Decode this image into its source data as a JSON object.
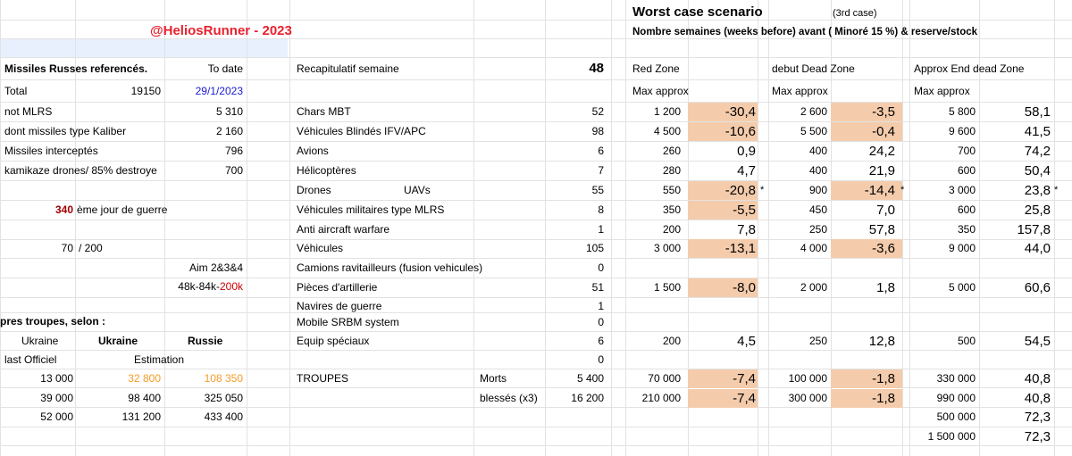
{
  "header": {
    "author": "@HeliosRunner - 2023",
    "title": "Worst case scenario",
    "case": "(3rd case)",
    "subtitle": "Nombre semaines (weeks before) avant ( Minoré 15 %) & reserve/stock"
  },
  "missiles": {
    "heading": "Missiles Russes referencés.",
    "to_date_label": "To date",
    "total_label": "Total",
    "total_value": "19150",
    "total_date": "29/1/2023",
    "not_mlrs_label": "not MLRS",
    "not_mlrs_value": "5 310",
    "kaliber_label": "dont missiles type Kaliber",
    "kaliber_value": "2 160",
    "intercepted_label": "Missiles interceptés",
    "intercepted_value": "796",
    "drones_label": "kamikaze drones/ 85% destroye",
    "drones_value": "700"
  },
  "war": {
    "day_number": "340",
    "day_label": "ème jour de guerre",
    "ratio": "70",
    "ratio_sep": "/ 200",
    "aim_label": "Aim 2&3&4",
    "aim_values_a": "48k-84k-",
    "aim_values_b": "200k"
  },
  "troops": {
    "heading": "pres troupes, selon :",
    "col_ukraine": "Ukraine",
    "col_ukraine_est": "Ukraine",
    "col_russie": "Russie",
    "last_officiel": "last Officiel",
    "estimation": "Estimation",
    "rows": [
      {
        "official": "13 000",
        "estimation": "32 800",
        "russie": "108 350"
      },
      {
        "official": "39 000",
        "estimation": "98 400",
        "russie": "325 050"
      },
      {
        "official": "52 000",
        "estimation": "131 200",
        "russie": "433 400"
      }
    ]
  },
  "recap": {
    "label": "Recapitulatif semaine",
    "week": "48",
    "col_red": "Red Zone",
    "col_dead_start": "debut Dead Zone",
    "col_dead_end": "Approx End dead Zone",
    "max_approx": "Max approx",
    "rows": [
      {
        "label": "Chars MBT",
        "sub": "",
        "week": "52",
        "red_max": "1 200",
        "red_val": "-30,4",
        "red_hl": true,
        "ds_max": "2 600",
        "ds_val": "-3,5",
        "ds_hl": true,
        "de_max": "5 800",
        "de_val": "58,1",
        "star": false
      },
      {
        "label": "Véhicules Blindés IFV/APC",
        "sub": "",
        "week": "98",
        "red_max": "4 500",
        "red_val": "-10,6",
        "red_hl": true,
        "ds_max": "5 500",
        "ds_val": "-0,4",
        "ds_hl": true,
        "de_max": "9 600",
        "de_val": "41,5",
        "star": false
      },
      {
        "label": "Avions",
        "sub": "",
        "week": "6",
        "red_max": "260",
        "red_val": "0,9",
        "red_hl": false,
        "ds_max": "400",
        "ds_val": "24,2",
        "ds_hl": false,
        "de_max": "700",
        "de_val": "74,2",
        "star": false
      },
      {
        "label": "Hélicoptères",
        "sub": "",
        "week": "7",
        "red_max": "280",
        "red_val": "4,7",
        "red_hl": false,
        "ds_max": "400",
        "ds_val": "21,9",
        "ds_hl": false,
        "de_max": "600",
        "de_val": "50,4",
        "star": false
      },
      {
        "label": "Drones",
        "sub": "UAVs",
        "week": "55",
        "red_max": "550",
        "red_val": "-20,8",
        "red_hl": true,
        "ds_max": "900",
        "ds_val": "-14,4",
        "ds_hl": true,
        "de_max": "3 000",
        "de_val": "23,8",
        "star": true
      },
      {
        "label": "Véhicules militaires type MLRS",
        "sub": "",
        "week": "8",
        "red_max": "350",
        "red_val": "-5,5",
        "red_hl": true,
        "ds_max": "450",
        "ds_val": "7,0",
        "ds_hl": false,
        "de_max": "600",
        "de_val": "25,8",
        "star": false
      },
      {
        "label": "Anti aircraft warfare",
        "sub": "",
        "week": "1",
        "red_max": "200",
        "red_val": "7,8",
        "red_hl": false,
        "ds_max": "250",
        "ds_val": "57,8",
        "ds_hl": false,
        "de_max": "350",
        "de_val": "157,8",
        "star": false
      },
      {
        "label": "Véhicules",
        "sub": "",
        "week": "105",
        "red_max": "3 000",
        "red_val": "-13,1",
        "red_hl": true,
        "ds_max": "4 000",
        "ds_val": "-3,6",
        "ds_hl": true,
        "de_max": "9 000",
        "de_val": "44,0",
        "star": false
      },
      {
        "label": "Camions ravitailleurs (fusion vehicules)",
        "sub": "",
        "week": "0",
        "red_max": "",
        "red_val": "",
        "red_hl": false,
        "ds_max": "",
        "ds_val": "",
        "ds_hl": false,
        "de_max": "",
        "de_val": "",
        "star": false
      },
      {
        "label": "Pièces d'artillerie",
        "sub": "",
        "week": "51",
        "red_max": "1 500",
        "red_val": "-8,0",
        "red_hl": true,
        "ds_max": "2 000",
        "ds_val": "1,8",
        "ds_hl": false,
        "de_max": "5 000",
        "de_val": "60,6",
        "star": false
      },
      {
        "label": "Navires de guerre",
        "sub": "",
        "week": "1",
        "red_max": "",
        "red_val": "",
        "red_hl": false,
        "ds_max": "",
        "ds_val": "",
        "ds_hl": false,
        "de_max": "",
        "de_val": "",
        "star": false
      },
      {
        "label": "Mobile SRBM system",
        "sub": "",
        "week": "0",
        "red_max": "",
        "red_val": "",
        "red_hl": false,
        "ds_max": "",
        "ds_val": "",
        "ds_hl": false,
        "de_max": "",
        "de_val": "",
        "star": false
      },
      {
        "label": "Equip spéciaux",
        "sub": "",
        "week": "6",
        "red_max": "200",
        "red_val": "4,5",
        "red_hl": false,
        "ds_max": "250",
        "ds_val": "12,8",
        "ds_hl": false,
        "de_max": "500",
        "de_val": "54,5",
        "star": false
      },
      {
        "label": "",
        "sub": "",
        "week": "0",
        "red_max": "",
        "red_val": "",
        "red_hl": false,
        "ds_max": "",
        "ds_val": "",
        "ds_hl": false,
        "de_max": "",
        "de_val": "",
        "star": false
      },
      {
        "label": "TROUPES",
        "sub": "Morts",
        "week": "5 400",
        "red_max": "70 000",
        "red_val": "-7,4",
        "red_hl": true,
        "ds_max": "100 000",
        "ds_val": "-1,8",
        "ds_hl": true,
        "de_max": "330 000",
        "de_val": "40,8",
        "star": false
      },
      {
        "label": "",
        "sub": "blessés (x3)",
        "week": "16 200",
        "red_max": "210 000",
        "red_val": "-7,4",
        "red_hl": true,
        "ds_max": "300 000",
        "ds_val": "-1,8",
        "ds_hl": true,
        "de_max": "990 000",
        "de_val": "40,8",
        "star": false
      },
      {
        "label": "",
        "sub": "",
        "week": "",
        "red_max": "",
        "red_val": "",
        "red_hl": false,
        "ds_max": "",
        "ds_val": "",
        "ds_hl": false,
        "de_max": "500 000",
        "de_val": "72,3",
        "star": false
      },
      {
        "label": "",
        "sub": "",
        "week": "",
        "red_max": "",
        "red_val": "",
        "red_hl": false,
        "ds_max": "",
        "ds_val": "",
        "ds_hl": false,
        "de_max": "1 500 000",
        "de_val": "72,3",
        "star": false
      }
    ],
    "star_symbol": "*"
  },
  "colors": {
    "highlight": "#f4ccac",
    "author_red": "#e8212e",
    "date_blue": "#1a1ad4",
    "estimation_orange": "#f39c27"
  }
}
